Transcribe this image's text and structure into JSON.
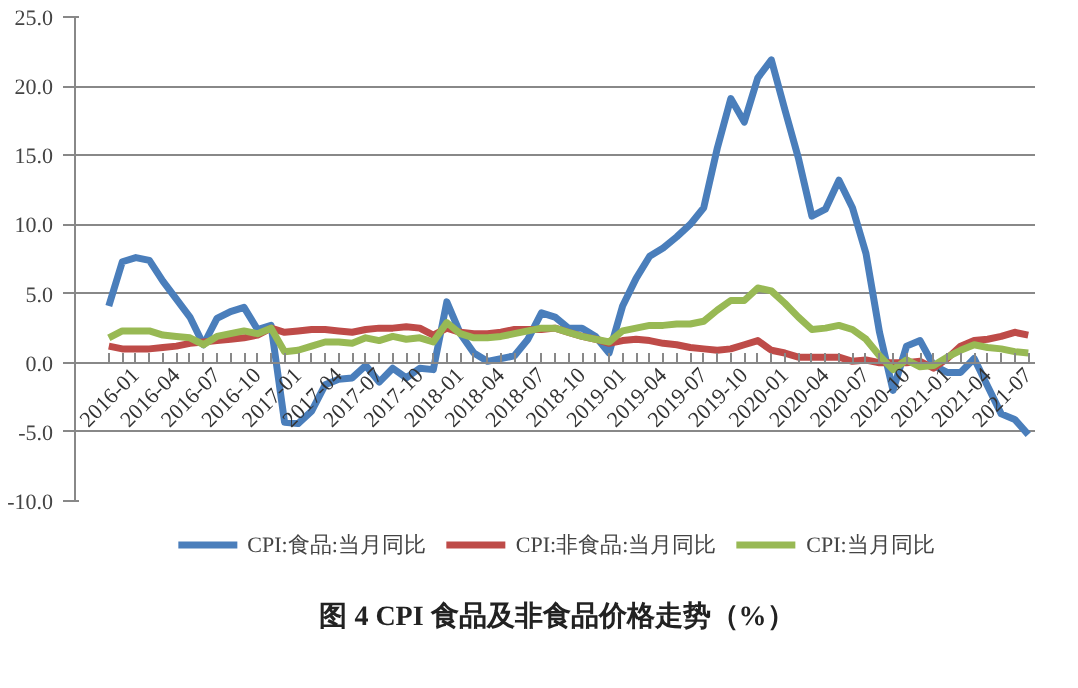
{
  "chart_data": {
    "type": "line",
    "title": "图 4 CPI 食品及非食品价格走势（%）",
    "categories": [
      "2016-01",
      null,
      null,
      "2016-04",
      null,
      null,
      "2016-07",
      null,
      null,
      "2016-10",
      null,
      null,
      "2017-01",
      null,
      null,
      "2017-04",
      null,
      null,
      "2017-07",
      null,
      null,
      "2017-10",
      null,
      null,
      "2018-01",
      null,
      null,
      "2018-04",
      null,
      null,
      "2018-07",
      null,
      null,
      "2018-10",
      null,
      null,
      "2019-01",
      null,
      null,
      "2019-04",
      null,
      null,
      "2019-07",
      null,
      null,
      "2019-10",
      null,
      null,
      "2020-01",
      null,
      null,
      "2020-04",
      null,
      null,
      "2020-07",
      null,
      null,
      "2020-10",
      null,
      null,
      "2021-01",
      null,
      null,
      "2021-04",
      null,
      null,
      "2021-07",
      null,
      null
    ],
    "series": [
      {
        "name": "CPI:食品:当月同比",
        "color": "#4a7ebb",
        "values": [
          4.1,
          7.3,
          7.6,
          7.4,
          5.9,
          4.6,
          3.3,
          1.3,
          3.2,
          3.7,
          4.0,
          2.4,
          2.7,
          -4.3,
          -4.4,
          -3.5,
          -1.6,
          -1.2,
          -1.1,
          -0.2,
          -1.4,
          -0.4,
          -1.1,
          -0.4,
          -0.5,
          4.4,
          2.1,
          0.7,
          0.1,
          0.3,
          0.5,
          1.7,
          3.6,
          3.3,
          2.5,
          2.5,
          1.9,
          0.7,
          4.1,
          6.1,
          7.7,
          8.3,
          9.1,
          10.0,
          11.2,
          15.5,
          19.1,
          17.4,
          20.6,
          21.9,
          18.3,
          14.8,
          10.6,
          11.1,
          13.2,
          11.2,
          7.9,
          2.2,
          -2.0,
          1.2,
          1.6,
          -0.2,
          -0.7,
          -0.7,
          0.3,
          -1.7,
          -3.7,
          -4.1,
          -5.2
        ]
      },
      {
        "name": "CPI:非食品:当月同比",
        "color": "#be4b48",
        "values": [
          1.2,
          1.0,
          1.0,
          1.0,
          1.1,
          1.2,
          1.4,
          1.5,
          1.6,
          1.7,
          1.8,
          2.0,
          2.5,
          2.2,
          2.3,
          2.4,
          2.4,
          2.3,
          2.2,
          2.4,
          2.5,
          2.5,
          2.6,
          2.5,
          2.0,
          2.5,
          2.2,
          2.1,
          2.1,
          2.2,
          2.4,
          2.4,
          2.4,
          2.5,
          2.2,
          1.9,
          1.7,
          1.4,
          1.6,
          1.7,
          1.6,
          1.4,
          1.3,
          1.1,
          1.0,
          0.9,
          1.0,
          1.3,
          1.6,
          0.9,
          0.7,
          0.4,
          0.4,
          0.4,
          0.4,
          0.1,
          0.2,
          0.0,
          0.0,
          0.0,
          0.1,
          -0.4,
          0.3,
          1.2,
          1.6,
          1.7,
          1.9,
          2.2,
          2.0
        ]
      },
      {
        "name": "CPI:当月同比",
        "color": "#98b954",
        "values": [
          1.8,
          2.3,
          2.3,
          2.3,
          2.0,
          1.9,
          1.8,
          1.3,
          1.9,
          2.1,
          2.3,
          2.1,
          2.5,
          0.8,
          0.9,
          1.2,
          1.5,
          1.5,
          1.4,
          1.8,
          1.6,
          1.9,
          1.7,
          1.8,
          1.5,
          2.9,
          2.1,
          1.8,
          1.8,
          1.9,
          2.1,
          2.3,
          2.5,
          2.5,
          2.2,
          1.9,
          1.7,
          1.5,
          2.3,
          2.5,
          2.7,
          2.7,
          2.8,
          2.8,
          3.0,
          3.8,
          4.5,
          4.5,
          5.4,
          5.2,
          4.3,
          3.3,
          2.4,
          2.5,
          2.7,
          2.4,
          1.7,
          0.5,
          -0.5,
          0.2,
          -0.3,
          -0.2,
          0.4,
          0.9,
          1.3,
          1.1,
          1.0,
          0.8,
          0.7
        ]
      }
    ],
    "ylim": [
      -10,
      25
    ],
    "yticks": [
      {
        "value": -10,
        "label": "-10.0"
      },
      {
        "value": -5,
        "label": "-5.0"
      },
      {
        "value": 0,
        "label": "0.0"
      },
      {
        "value": 5,
        "label": "5.0"
      },
      {
        "value": 10,
        "label": "10.0"
      },
      {
        "value": 15,
        "label": "15.0"
      },
      {
        "value": 20,
        "label": "20.0"
      },
      {
        "value": 25,
        "label": "25.0"
      }
    ],
    "grid": "y",
    "legend": "bottom",
    "marker": "none",
    "line_style": "solid"
  }
}
